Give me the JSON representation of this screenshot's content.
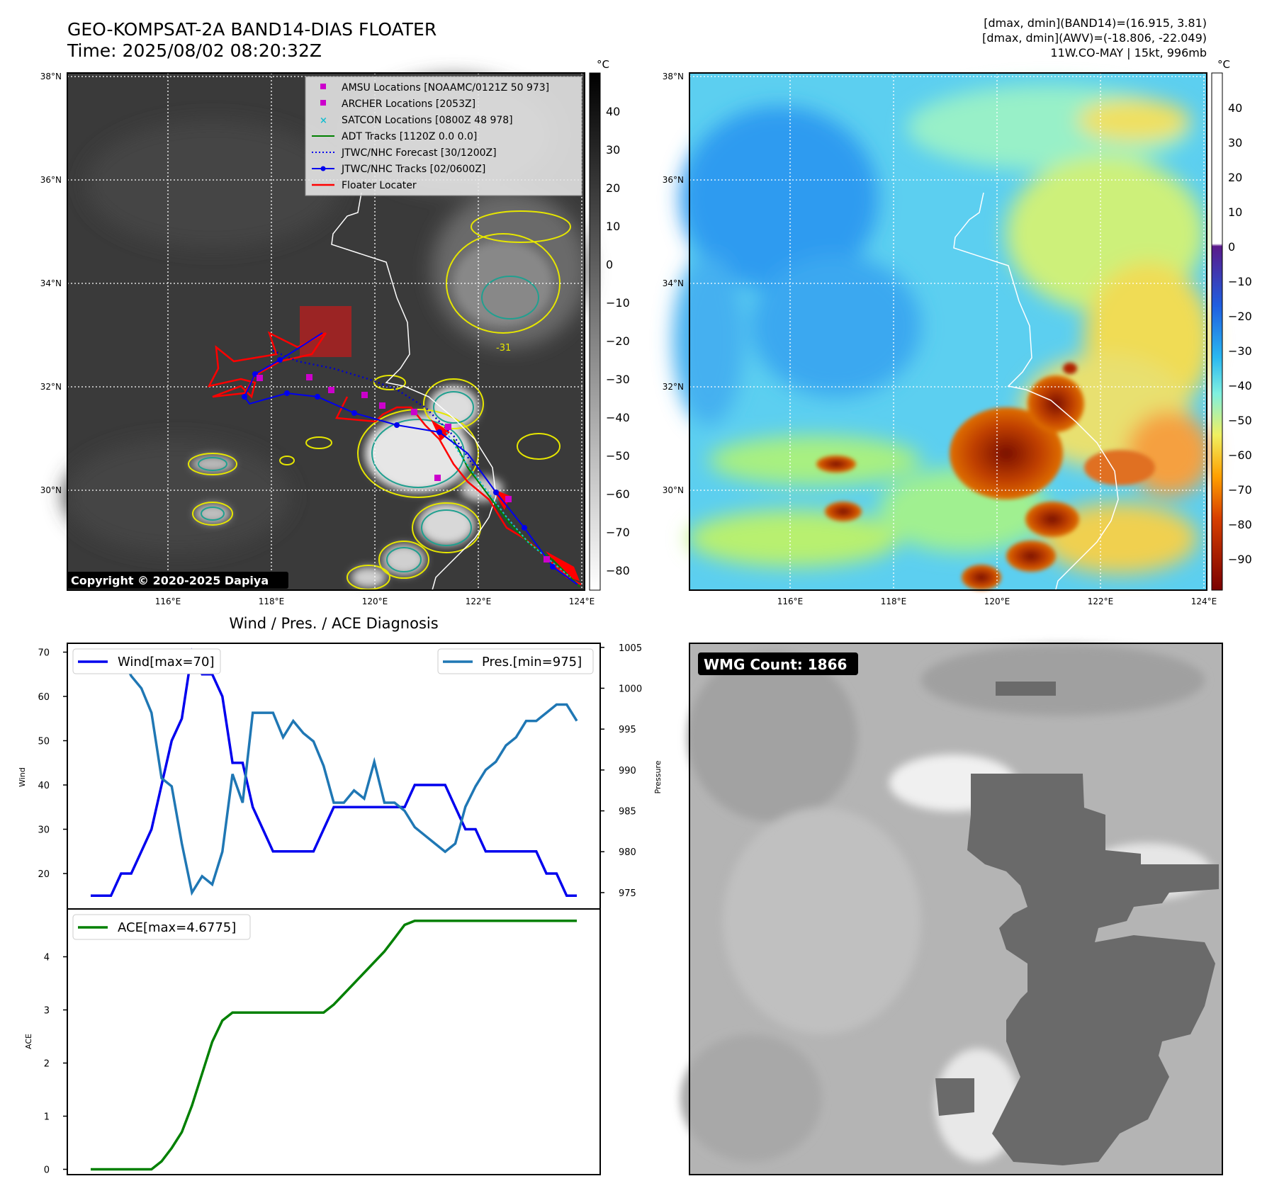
{
  "header": {
    "title": "GEO-KOMPSAT-2A BAND14-DIAS FLOATER",
    "time": "Time: 2025/08/02 08:20:32Z",
    "range_band14": "[dmax, dmin](BAND14)=(16.915, 3.81)",
    "range_awv": "[dmax, dmin](AWV)=(-18.806, -22.049)",
    "storm_info": "11W.CO-MAY | 15kt, 996mb"
  },
  "map": {
    "lat_labels": [
      "38°N",
      "36°N",
      "34°N",
      "32°N",
      "30°N"
    ],
    "lon_labels": [
      "116°E",
      "118°E",
      "120°E",
      "122°E",
      "124°E"
    ],
    "contour_label": "-31",
    "copyright": "Copyright © 2020-2025 Dapiya"
  },
  "colorbar_ir": {
    "unit": "°C",
    "ticks": [
      "40",
      "30",
      "20",
      "10",
      "0",
      "−10",
      "−20",
      "−30",
      "−40",
      "−50",
      "−60",
      "−70",
      "−80"
    ]
  },
  "colorbar_wv": {
    "unit": "°C",
    "ticks": [
      "40",
      "30",
      "20",
      "10",
      "0",
      "−10",
      "−20",
      "−30",
      "−40",
      "−50",
      "−60",
      "−70",
      "−80",
      "−90"
    ]
  },
  "legend": {
    "amsu": "AMSU Locations [NOAAMC/0121Z 50 973]",
    "archer": "ARCHER Locations [2053Z]",
    "satcon": "SATCON Locations [0800Z 48 978]",
    "adt": "ADT Tracks [1120Z 0.0 0.0]",
    "forecast": "JTWC/NHC Forecast [30/1200Z]",
    "tracks": "JTWC/NHC Tracks [02/0600Z]",
    "floater": "Floater Locater"
  },
  "wmg": {
    "label": "WMG Count: 1866"
  },
  "colors": {
    "wind": "#0000ee",
    "pressure": "#1f77b4",
    "ace": "#008000",
    "amsu": "#cc00cc",
    "satcon": "#17becf",
    "floater": "#ff0000"
  },
  "chart_data": [
    {
      "type": "line",
      "title": "Wind / Pres. / ACE Diagnosis",
      "ylabel": "Wind",
      "ylabel_right": "Pressure",
      "ylim": [
        12,
        72
      ],
      "ylim_right": [
        973,
        1005.5
      ],
      "yticks": [
        "70",
        "60",
        "50",
        "40",
        "30",
        "20"
      ],
      "yticks_right": [
        "1005",
        "1000",
        "995",
        "990",
        "985",
        "980",
        "975"
      ],
      "series": [
        {
          "name": "Wind[max=70]",
          "axis": "left",
          "values": [
            15,
            15,
            15,
            20,
            20,
            25,
            30,
            40,
            50,
            55,
            70,
            65,
            65,
            60,
            45,
            45,
            35,
            30,
            25,
            25,
            25,
            25,
            25,
            30,
            35,
            35,
            35,
            35,
            35,
            35,
            35,
            35,
            40,
            40,
            40,
            40,
            35,
            30,
            30,
            25,
            25,
            25,
            25,
            25,
            25,
            20,
            20,
            15,
            15
          ]
        },
        {
          "name": "Pres.[min=975]",
          "axis": "right",
          "values": [
            1004,
            1004,
            1004,
            1004,
            1001.5,
            1000,
            997,
            989,
            988,
            981,
            975,
            977,
            976,
            980,
            989.5,
            986,
            997,
            997,
            997,
            994,
            996,
            994.5,
            993.5,
            990.5,
            986,
            986,
            987.5,
            986.5,
            991,
            986,
            986,
            985,
            983,
            982,
            981,
            980,
            981,
            985.5,
            988,
            990,
            991,
            993,
            994,
            996,
            996,
            997,
            998,
            998,
            996
          ]
        }
      ]
    },
    {
      "type": "line",
      "ylabel": "ACE",
      "ylim": [
        -0.1,
        4.9
      ],
      "yticks": [
        "4",
        "3",
        "2",
        "1",
        "0"
      ],
      "series": [
        {
          "name": "ACE[max=4.6775]",
          "values": [
            0,
            0,
            0,
            0,
            0,
            0,
            0,
            0.15,
            0.4,
            0.7,
            1.2,
            1.8,
            2.4,
            2.8,
            2.95,
            2.95,
            2.95,
            2.95,
            2.95,
            2.95,
            2.95,
            2.95,
            2.95,
            2.95,
            3.1,
            3.3,
            3.5,
            3.7,
            3.9,
            4.1,
            4.35,
            4.6,
            4.6775,
            4.6775,
            4.6775,
            4.6775,
            4.6775,
            4.6775,
            4.6775,
            4.6775,
            4.6775,
            4.6775,
            4.6775,
            4.6775,
            4.6775,
            4.6775,
            4.6775,
            4.6775,
            4.6775
          ]
        }
      ]
    }
  ]
}
